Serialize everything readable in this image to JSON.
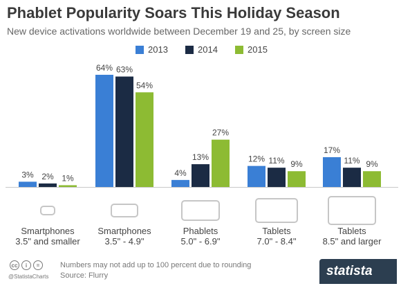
{
  "header": {
    "title": "Phablet Popularity Soars This Holiday Season",
    "subtitle": "New device activations worldwide between December 19 and 25, by screen size"
  },
  "colors": {
    "2013": "#3a7fd5",
    "2014": "#1b2b44",
    "2015": "#8dbb33",
    "axis": "#c8c8c8",
    "icon": "#c6c6c6"
  },
  "chart_data": {
    "type": "bar",
    "title": "Phablet Popularity Soars This Holiday Season",
    "subtitle": "New device activations worldwide between December 19 and 25, by screen size",
    "categories": [
      "Smartphones 3.5\" and smaller",
      "Smartphones 3.5\" - 4.9\"",
      "Phablets 5.0\" - 6.9\"",
      "Tablets 7.0\" - 8.4\"",
      "Tablets 8.5\" and larger"
    ],
    "category_lines": [
      [
        "Smartphones",
        "3.5\" and smaller"
      ],
      [
        "Smartphones",
        "3.5\" - 4.9\""
      ],
      [
        "Phablets",
        "5.0\" - 6.9\""
      ],
      [
        "Tablets",
        "7.0\" - 8.4\""
      ],
      [
        "Tablets",
        "8.5\" and larger"
      ]
    ],
    "series": [
      {
        "name": "2013",
        "values": [
          3,
          64,
          4,
          12,
          17
        ],
        "labels": [
          "3%",
          "64%",
          "4%",
          "12%",
          "17%"
        ]
      },
      {
        "name": "2014",
        "values": [
          2,
          63,
          13,
          11,
          11
        ],
        "labels": [
          "2%",
          "63%",
          "13%",
          "11%",
          "11%"
        ]
      },
      {
        "name": "2015",
        "values": [
          1,
          54,
          27,
          9,
          9
        ],
        "labels": [
          "1%",
          "54%",
          "27%",
          "9%",
          "9%"
        ]
      }
    ],
    "ylim": [
      0,
      64
    ],
    "unit": "%",
    "grid": false,
    "legend": "top-center",
    "category_icons": [
      "small-phone-icon",
      "phone-icon",
      "phablet-icon",
      "tablet-icon",
      "large-tablet-icon"
    ]
  },
  "footer": {
    "note": "Numbers may not add up to 100 percent due to rounding",
    "source": "Source: Flurry",
    "handle": "@StatistaCharts",
    "brand": "statista",
    "cc_icons": [
      "cc",
      "i",
      "="
    ]
  }
}
